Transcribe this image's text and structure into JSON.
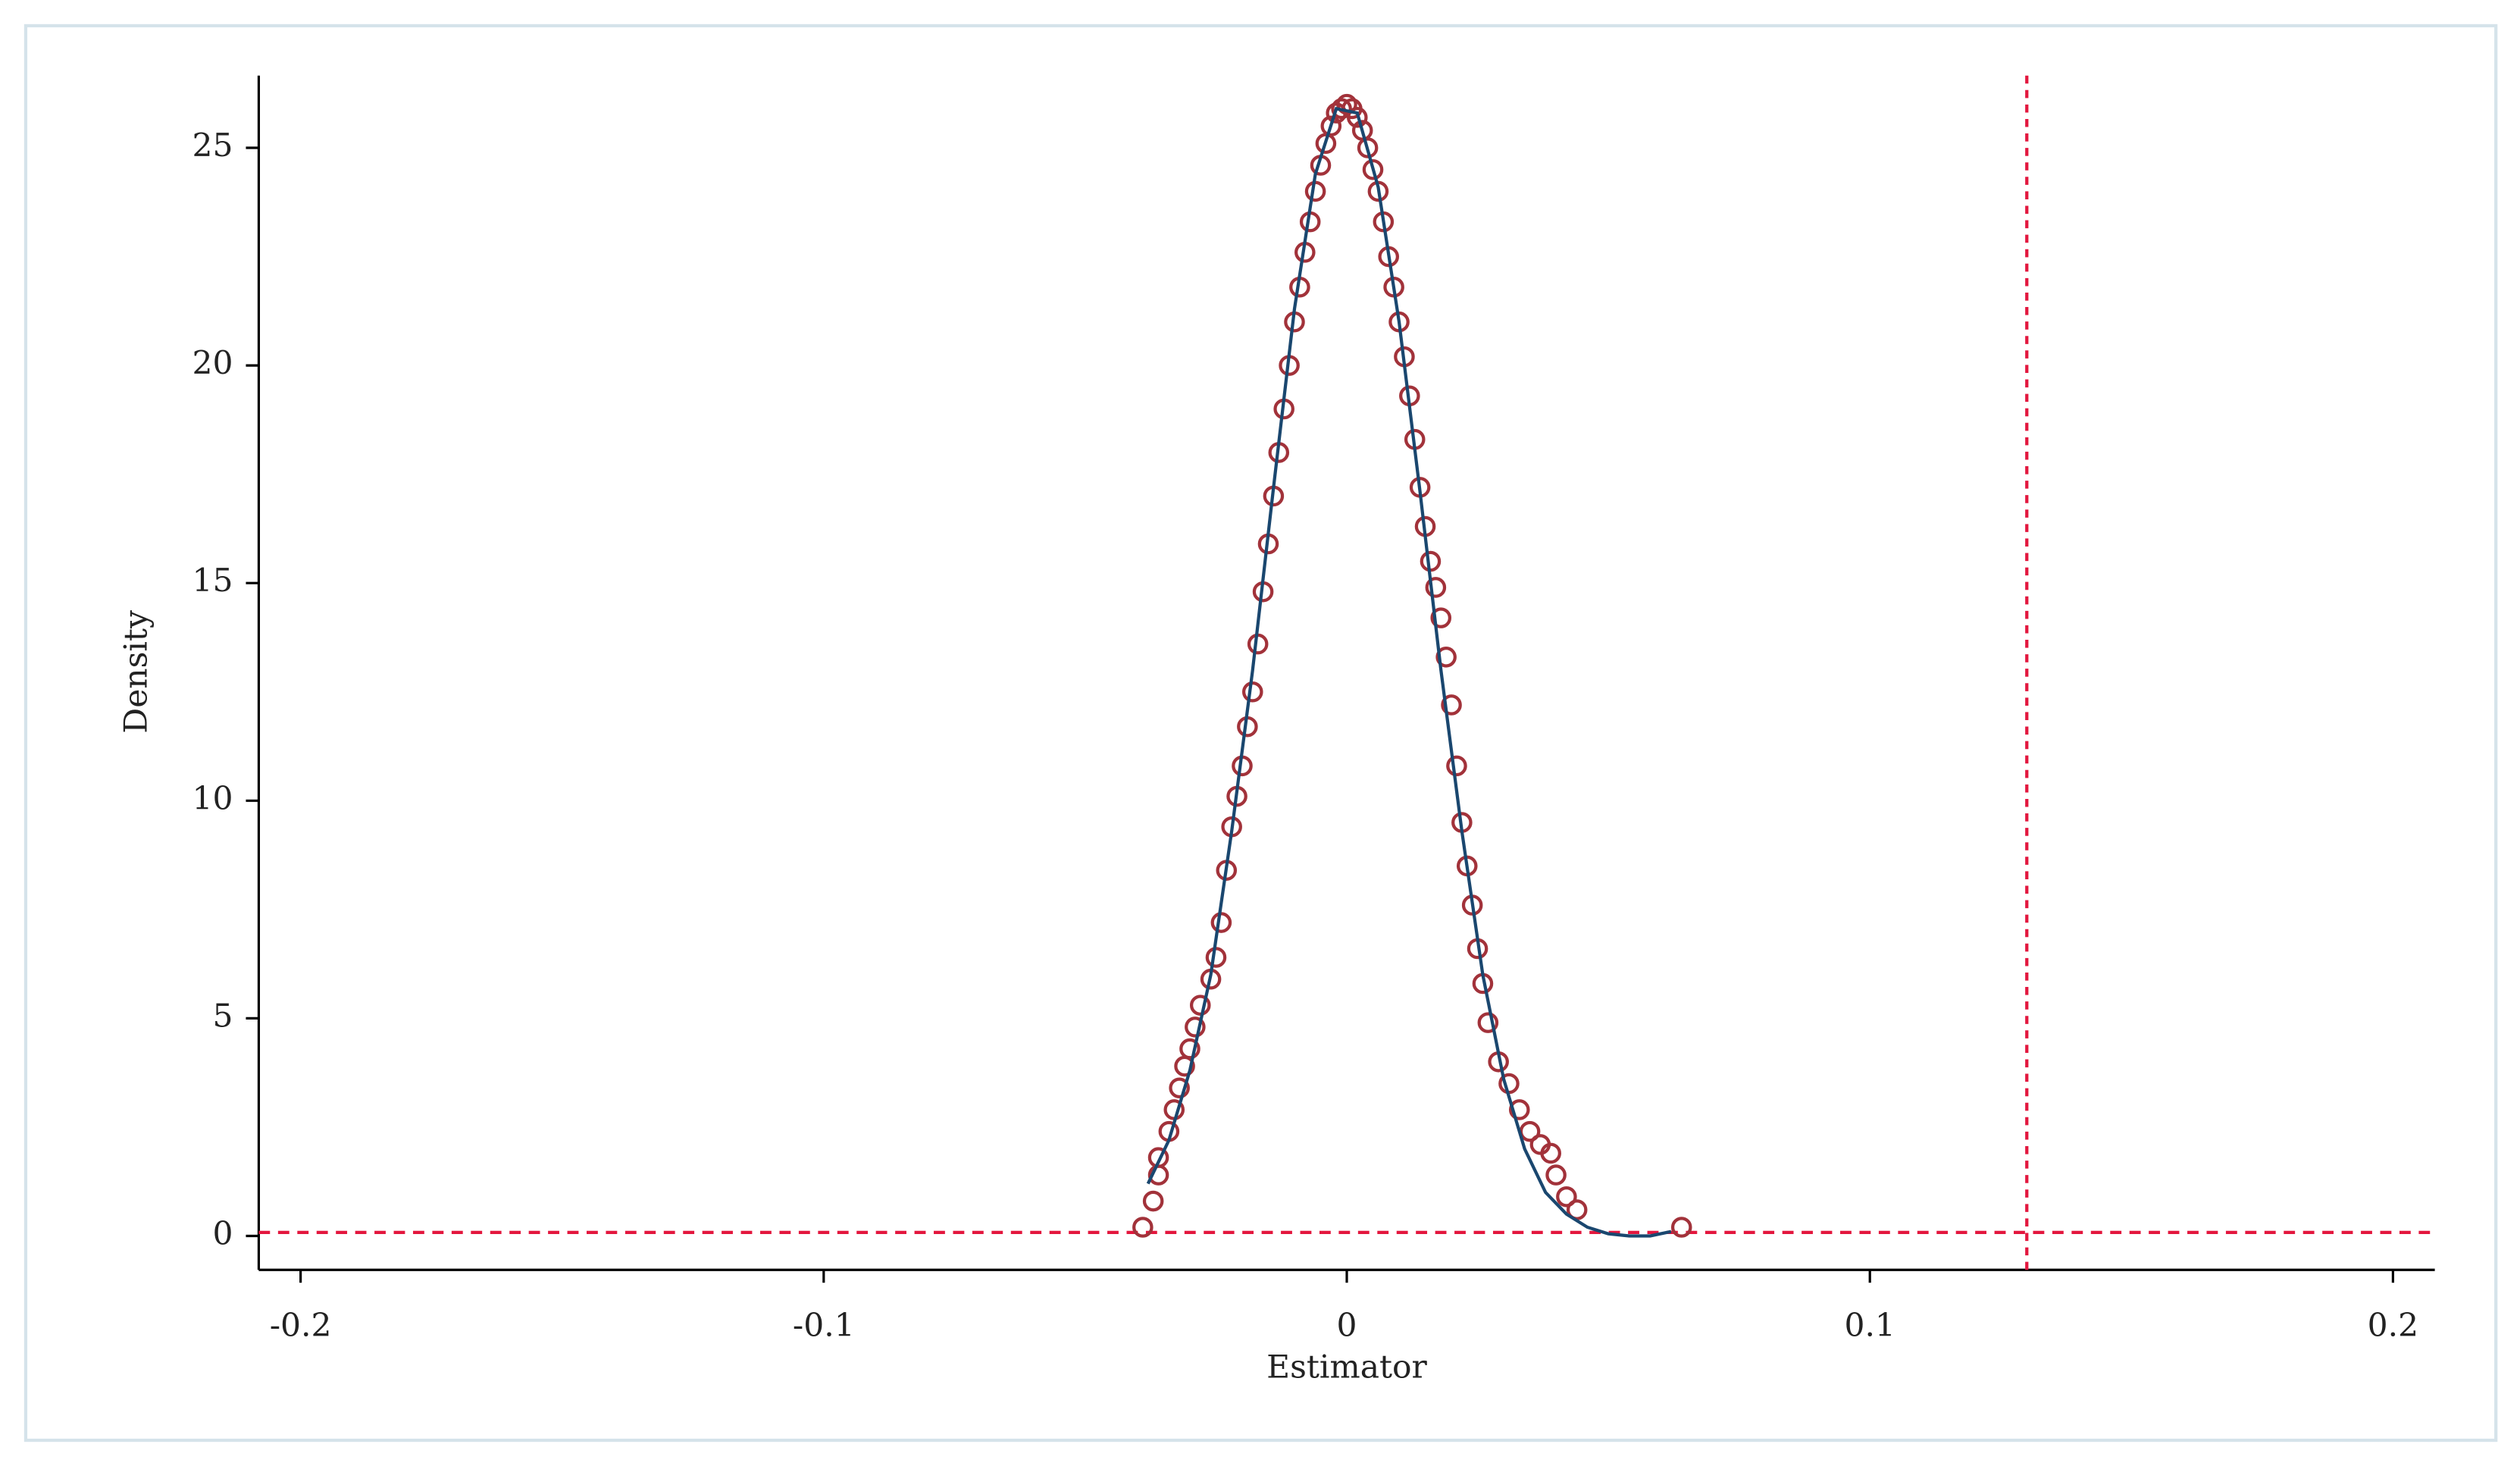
{
  "chart_data": {
    "type": "scatter",
    "x_label": "Estimator",
    "y_label": "Density",
    "xlim": [
      -0.208,
      0.208
    ],
    "ylim": [
      -0.78,
      26.66
    ],
    "xticks": [
      -0.2,
      -0.1,
      0,
      0.1,
      0.2
    ],
    "yticks": [
      0,
      5,
      10,
      15,
      20,
      25
    ],
    "xline": 0.13,
    "yline": 0.08,
    "ref_color": "#e3173e",
    "series": [
      {
        "type": "scatter",
        "color": "#a2323a",
        "x": [
          -0.039,
          -0.037,
          -0.036,
          -0.036,
          -0.034,
          -0.033,
          -0.032,
          -0.031,
          -0.03,
          -0.029,
          -0.028,
          -0.026,
          -0.025,
          -0.024,
          -0.023,
          -0.022,
          -0.021,
          -0.02,
          -0.019,
          -0.018,
          -0.017,
          -0.016,
          -0.015,
          -0.014,
          -0.013,
          -0.012,
          -0.011,
          -0.01,
          -0.009,
          -0.008,
          -0.007,
          -0.006,
          -0.005,
          -0.004,
          -0.003,
          -0.002,
          -0.001,
          0,
          0.001,
          0.002,
          0.003,
          0.004,
          0.005,
          0.006,
          0.007,
          0.008,
          0.009,
          0.01,
          0.011,
          0.012,
          0.013,
          0.014,
          0.015,
          0.016,
          0.017,
          0.018,
          0.019,
          0.02,
          0.021,
          0.022,
          0.023,
          0.024,
          0.025,
          0.026,
          0.027,
          0.029,
          0.031,
          0.033,
          0.035,
          0.037,
          0.039,
          0.04,
          0.042,
          0.044,
          0.064
        ],
        "values": [
          0.2,
          0.8,
          1.4,
          1.8,
          2.4,
          2.9,
          3.4,
          3.9,
          4.3,
          4.8,
          5.3,
          5.9,
          6.4,
          7.2,
          8.4,
          9.4,
          10.1,
          10.8,
          11.7,
          12.5,
          13.6,
          14.8,
          15.9,
          17.0,
          18.0,
          19.0,
          20.0,
          21.0,
          21.8,
          22.6,
          23.3,
          24.0,
          24.6,
          25.1,
          25.5,
          25.8,
          25.9,
          26.0,
          25.9,
          25.7,
          25.4,
          25.0,
          24.5,
          24.0,
          23.3,
          22.5,
          21.8,
          21.0,
          20.2,
          19.3,
          18.3,
          17.2,
          16.3,
          15.5,
          14.9,
          14.2,
          13.3,
          12.2,
          10.8,
          9.5,
          8.5,
          7.6,
          6.6,
          5.8,
          4.9,
          4.0,
          3.5,
          2.9,
          2.4,
          2.1,
          1.9,
          1.4,
          0.9,
          0.6,
          0.2
        ]
      },
      {
        "type": "line",
        "color": "#1a476f",
        "x": [
          -0.038,
          -0.034,
          -0.03,
          -0.026,
          -0.022,
          -0.018,
          -0.014,
          -0.01,
          -0.006,
          -0.002,
          0.002,
          0.006,
          0.01,
          0.014,
          0.018,
          0.022,
          0.026,
          0.03,
          0.034,
          0.038,
          0.042,
          0.046,
          0.05,
          0.054,
          0.058,
          0.062
        ],
        "values": [
          1.2,
          2.2,
          3.8,
          6.0,
          9.3,
          13.0,
          17.2,
          21.3,
          24.4,
          25.9,
          25.8,
          24.1,
          21.0,
          17.1,
          13.0,
          9.3,
          6.0,
          3.6,
          2.0,
          1.0,
          0.5,
          0.2,
          0.05,
          0,
          0,
          0.1
        ]
      }
    ]
  }
}
